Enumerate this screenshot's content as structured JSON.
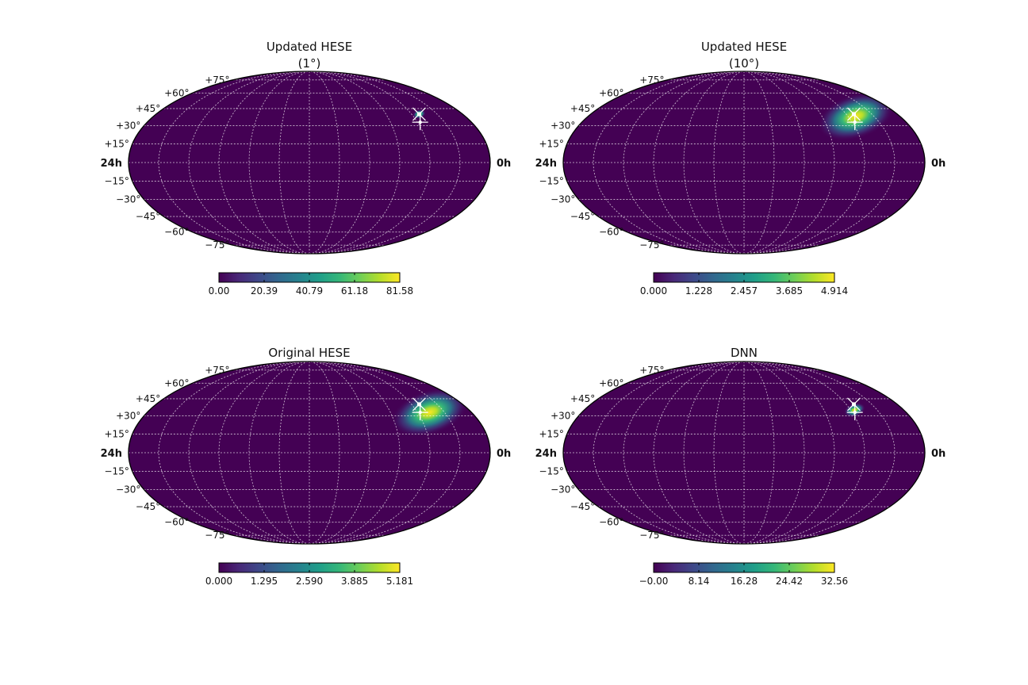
{
  "figure": {
    "colormap": "viridis",
    "colormap_stops": [
      "#440154",
      "#482878",
      "#3e4989",
      "#31688e",
      "#26828e",
      "#1f9e89",
      "#35b779",
      "#6ece58",
      "#b5de2b",
      "#fde725"
    ],
    "grid_color": "#ffffff",
    "marker_color": "#ffffff"
  },
  "chart_data": [
    {
      "type": "heatmap",
      "projection": "mollweide",
      "title": "Updated HESE",
      "subtitle": "(1°)",
      "ra_label_left": "24h",
      "ra_label_right": "0h",
      "dec_labels": [
        "+75°",
        "+60°",
        "+45°",
        "+30°",
        "+15°",
        "−15°",
        "−30°",
        "−45°",
        "−60°",
        "−75°"
      ],
      "grid": true,
      "hotspot": {
        "ra_hours": 3.4,
        "dec_deg": 40,
        "spread_ra_deg": 3,
        "spread_dec_deg": 2,
        "peak": 81.58
      },
      "markers": [
        {
          "type": "cross",
          "ra_hours": 3.4,
          "dec_deg": 40
        },
        {
          "type": "plus",
          "ra_hours": 3.8,
          "dec_deg": 33
        }
      ],
      "colorbar": {
        "min": 0.0,
        "max": 81.58,
        "ticks": [
          "0.00",
          "20.39",
          "40.79",
          "61.18",
          "81.58"
        ]
      }
    },
    {
      "type": "heatmap",
      "projection": "mollweide",
      "title": "Updated HESE",
      "subtitle": "(10°)",
      "ra_label_left": "24h",
      "ra_label_right": "0h",
      "dec_labels": [
        "+75°",
        "+60°",
        "+45°",
        "+30°",
        "+15°",
        "−15°",
        "−30°",
        "−45°",
        "−60°",
        "−75°"
      ],
      "grid": true,
      "hotspot": {
        "ra_hours": 3.4,
        "dec_deg": 38,
        "spread_ra_deg": 18,
        "spread_dec_deg": 10,
        "peak": 4.914
      },
      "markers": [
        {
          "type": "cross",
          "ra_hours": 3.4,
          "dec_deg": 40
        },
        {
          "type": "plus",
          "ra_hours": 3.8,
          "dec_deg": 33
        }
      ],
      "colorbar": {
        "min": 0.0,
        "max": 4.914,
        "ticks": [
          "0.000",
          "1.228",
          "2.457",
          "3.685",
          "4.914"
        ]
      }
    },
    {
      "type": "heatmap",
      "projection": "mollweide",
      "title": "Original HESE",
      "subtitle": "",
      "ra_label_left": "24h",
      "ra_label_right": "0h",
      "dec_labels": [
        "+75°",
        "+60°",
        "+45°",
        "+30°",
        "+15°",
        "−15°",
        "−30°",
        "−45°",
        "−60°",
        "−75°"
      ],
      "grid": true,
      "hotspot": {
        "ra_hours": 3.1,
        "dec_deg": 33,
        "spread_ra_deg": 18,
        "spread_dec_deg": 10,
        "peak": 5.181
      },
      "markers": [
        {
          "type": "cross",
          "ra_hours": 3.4,
          "dec_deg": 40
        },
        {
          "type": "plus",
          "ra_hours": 3.8,
          "dec_deg": 33
        }
      ],
      "colorbar": {
        "min": 0.0,
        "max": 5.181,
        "ticks": [
          "0.000",
          "1.295",
          "2.590",
          "3.885",
          "5.181"
        ]
      }
    },
    {
      "type": "heatmap",
      "projection": "mollweide",
      "title": "DNN",
      "subtitle": "",
      "ra_label_left": "24h",
      "ra_label_right": "0h",
      "dec_labels": [
        "+75°",
        "+60°",
        "+45°",
        "+30°",
        "+15°",
        "−15°",
        "−30°",
        "−45°",
        "−60°",
        "−75°"
      ],
      "grid": true,
      "hotspot": {
        "ra_hours": 3.7,
        "dec_deg": 35,
        "spread_ra_deg": 5,
        "spread_dec_deg": 3,
        "peak": 32.56
      },
      "markers": [
        {
          "type": "cross",
          "ra_hours": 3.4,
          "dec_deg": 40
        },
        {
          "type": "plus",
          "ra_hours": 3.8,
          "dec_deg": 33
        }
      ],
      "colorbar": {
        "min": -0.0,
        "max": 32.56,
        "ticks": [
          "−0.00",
          "8.14",
          "16.28",
          "24.42",
          "32.56"
        ]
      }
    }
  ]
}
